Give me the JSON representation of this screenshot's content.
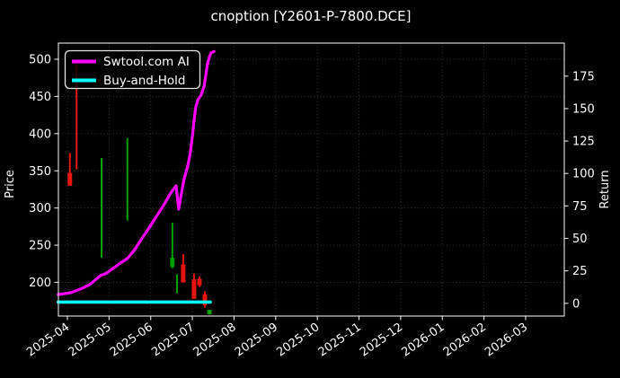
{
  "chart_data": {
    "type": "line",
    "title": "cnoption [Y2601-P-7800.DCE]",
    "background": "#000000",
    "text_color": "#ffffff",
    "spine_color": "#e6e6e6",
    "grid": "dotted",
    "grid_color": "#343434",
    "left_axis": {
      "label": "Price",
      "ticks": [
        200,
        250,
        300,
        350,
        400,
        450,
        500
      ]
    },
    "right_axis": {
      "label": "Return",
      "ticks": [
        0,
        25,
        50,
        75,
        100,
        125,
        150,
        175
      ]
    },
    "x_tick_labels": [
      "2025-04",
      "2025-05",
      "2025-06",
      "2025-07",
      "2025-08",
      "2025-09",
      "2025-10",
      "2025-11",
      "2025-12",
      "2026-01",
      "2026-02",
      "2026-03"
    ],
    "legend": [
      {
        "label": "Swtool.com AI",
        "color": "#ff00ff"
      },
      {
        "label": "Buy-and-Hold",
        "color": "#00ffff"
      }
    ],
    "series": [
      {
        "name": "Swtool.com AI",
        "axis": "return",
        "color": "#ff00ff",
        "width": 3.2,
        "points": [
          [
            -0.22,
            6.8
          ],
          [
            0.06,
            8
          ],
          [
            0.32,
            11
          ],
          [
            0.54,
            14.5
          ],
          [
            0.67,
            18
          ],
          [
            0.8,
            21.5
          ],
          [
            0.93,
            23
          ],
          [
            1.1,
            27
          ],
          [
            1.27,
            31
          ],
          [
            1.44,
            34.5
          ],
          [
            1.62,
            41.5
          ],
          [
            1.79,
            50
          ],
          [
            1.96,
            58
          ],
          [
            2.13,
            66.5
          ],
          [
            2.31,
            75.5
          ],
          [
            2.48,
            85
          ],
          [
            2.61,
            90.5
          ],
          [
            2.67,
            72.5
          ],
          [
            2.74,
            85
          ],
          [
            2.8,
            95.5
          ],
          [
            2.89,
            106
          ],
          [
            2.95,
            116
          ],
          [
            3.0,
            128.5
          ],
          [
            3.04,
            140.5
          ],
          [
            3.08,
            151
          ],
          [
            3.13,
            156.5
          ],
          [
            3.21,
            160.5
          ],
          [
            3.28,
            167
          ],
          [
            3.32,
            175
          ],
          [
            3.36,
            184
          ],
          [
            3.41,
            190
          ],
          [
            3.45,
            193
          ],
          [
            3.52,
            194
          ]
        ]
      },
      {
        "name": "Buy-and-Hold",
        "axis": "return",
        "color": "#00ffff",
        "width": 3.6,
        "points": [
          [
            -0.22,
            1
          ],
          [
            3.43,
            1
          ]
        ]
      }
    ],
    "bar_palette": {
      "red": "#e6150f",
      "green": "#00a000"
    },
    "price_bars": [
      {
        "m": 0.06,
        "color": "red",
        "high": 374,
        "low": 330,
        "body_high": 347,
        "body_low": 330
      },
      {
        "m": 0.22,
        "color": "red",
        "high": 497,
        "low": 352
      },
      {
        "m": 0.82,
        "color": "green",
        "high": 367,
        "low": 233
      },
      {
        "m": 1.44,
        "color": "green",
        "high": 394,
        "low": 283
      },
      {
        "m": 2.52,
        "color": "green",
        "high": 280,
        "low": 219,
        "body_high": 233,
        "body_low": 221
      },
      {
        "m": 2.63,
        "color": "green",
        "high": 211,
        "low": 185
      },
      {
        "m": 2.78,
        "color": "red",
        "high": 238,
        "low": 200,
        "body_high": 224,
        "body_low": 200
      },
      {
        "m": 3.04,
        "color": "red",
        "high": 212,
        "low": 178,
        "body_high": 204,
        "body_low": 178
      },
      {
        "m": 3.17,
        "color": "red",
        "high": 208,
        "low": 194,
        "body_high": 205,
        "body_low": 196
      },
      {
        "m": 3.3,
        "color": "red",
        "high": 188,
        "low": 166,
        "body_high": 184,
        "body_low": 169
      },
      {
        "m": 3.41,
        "color": "green",
        "high": 163,
        "low": 157,
        "body_high": 163,
        "body_low": 157
      }
    ]
  }
}
